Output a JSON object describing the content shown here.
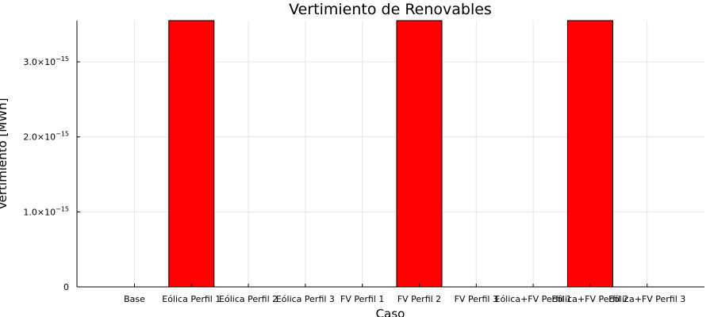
{
  "chart_data": {
    "type": "bar",
    "title": "Vertimiento de Renovables",
    "xlabel": "Caso",
    "ylabel": "Vertimiento [MWh]",
    "categories": [
      "Base",
      "Eólica Perfil 1",
      "Eólica Perfil 2",
      "Eólica Perfil 3",
      "FV Perfil 1",
      "FV Perfil 2",
      "FV Perfil 3",
      "Eólica+FV Perfil 1",
      "Eólica+FV Perfil 2",
      "Eólica+FV Perfil 3"
    ],
    "values": [
      0,
      3.55e-15,
      0,
      0,
      0,
      3.55e-15,
      0,
      0,
      3.55e-15,
      0
    ],
    "ylim": [
      0,
      3.55e-15
    ],
    "yticks": [
      {
        "value": 0,
        "mantissa": "0",
        "exp": ""
      },
      {
        "value": 1e-15,
        "mantissa": "1.0×10",
        "exp": "−15"
      },
      {
        "value": 2e-15,
        "mantissa": "2.0×10",
        "exp": "−15"
      },
      {
        "value": 3e-15,
        "mantissa": "3.0×10",
        "exp": "−15"
      }
    ],
    "bar_color": "#ff0000",
    "grid": true,
    "legend": "none"
  }
}
